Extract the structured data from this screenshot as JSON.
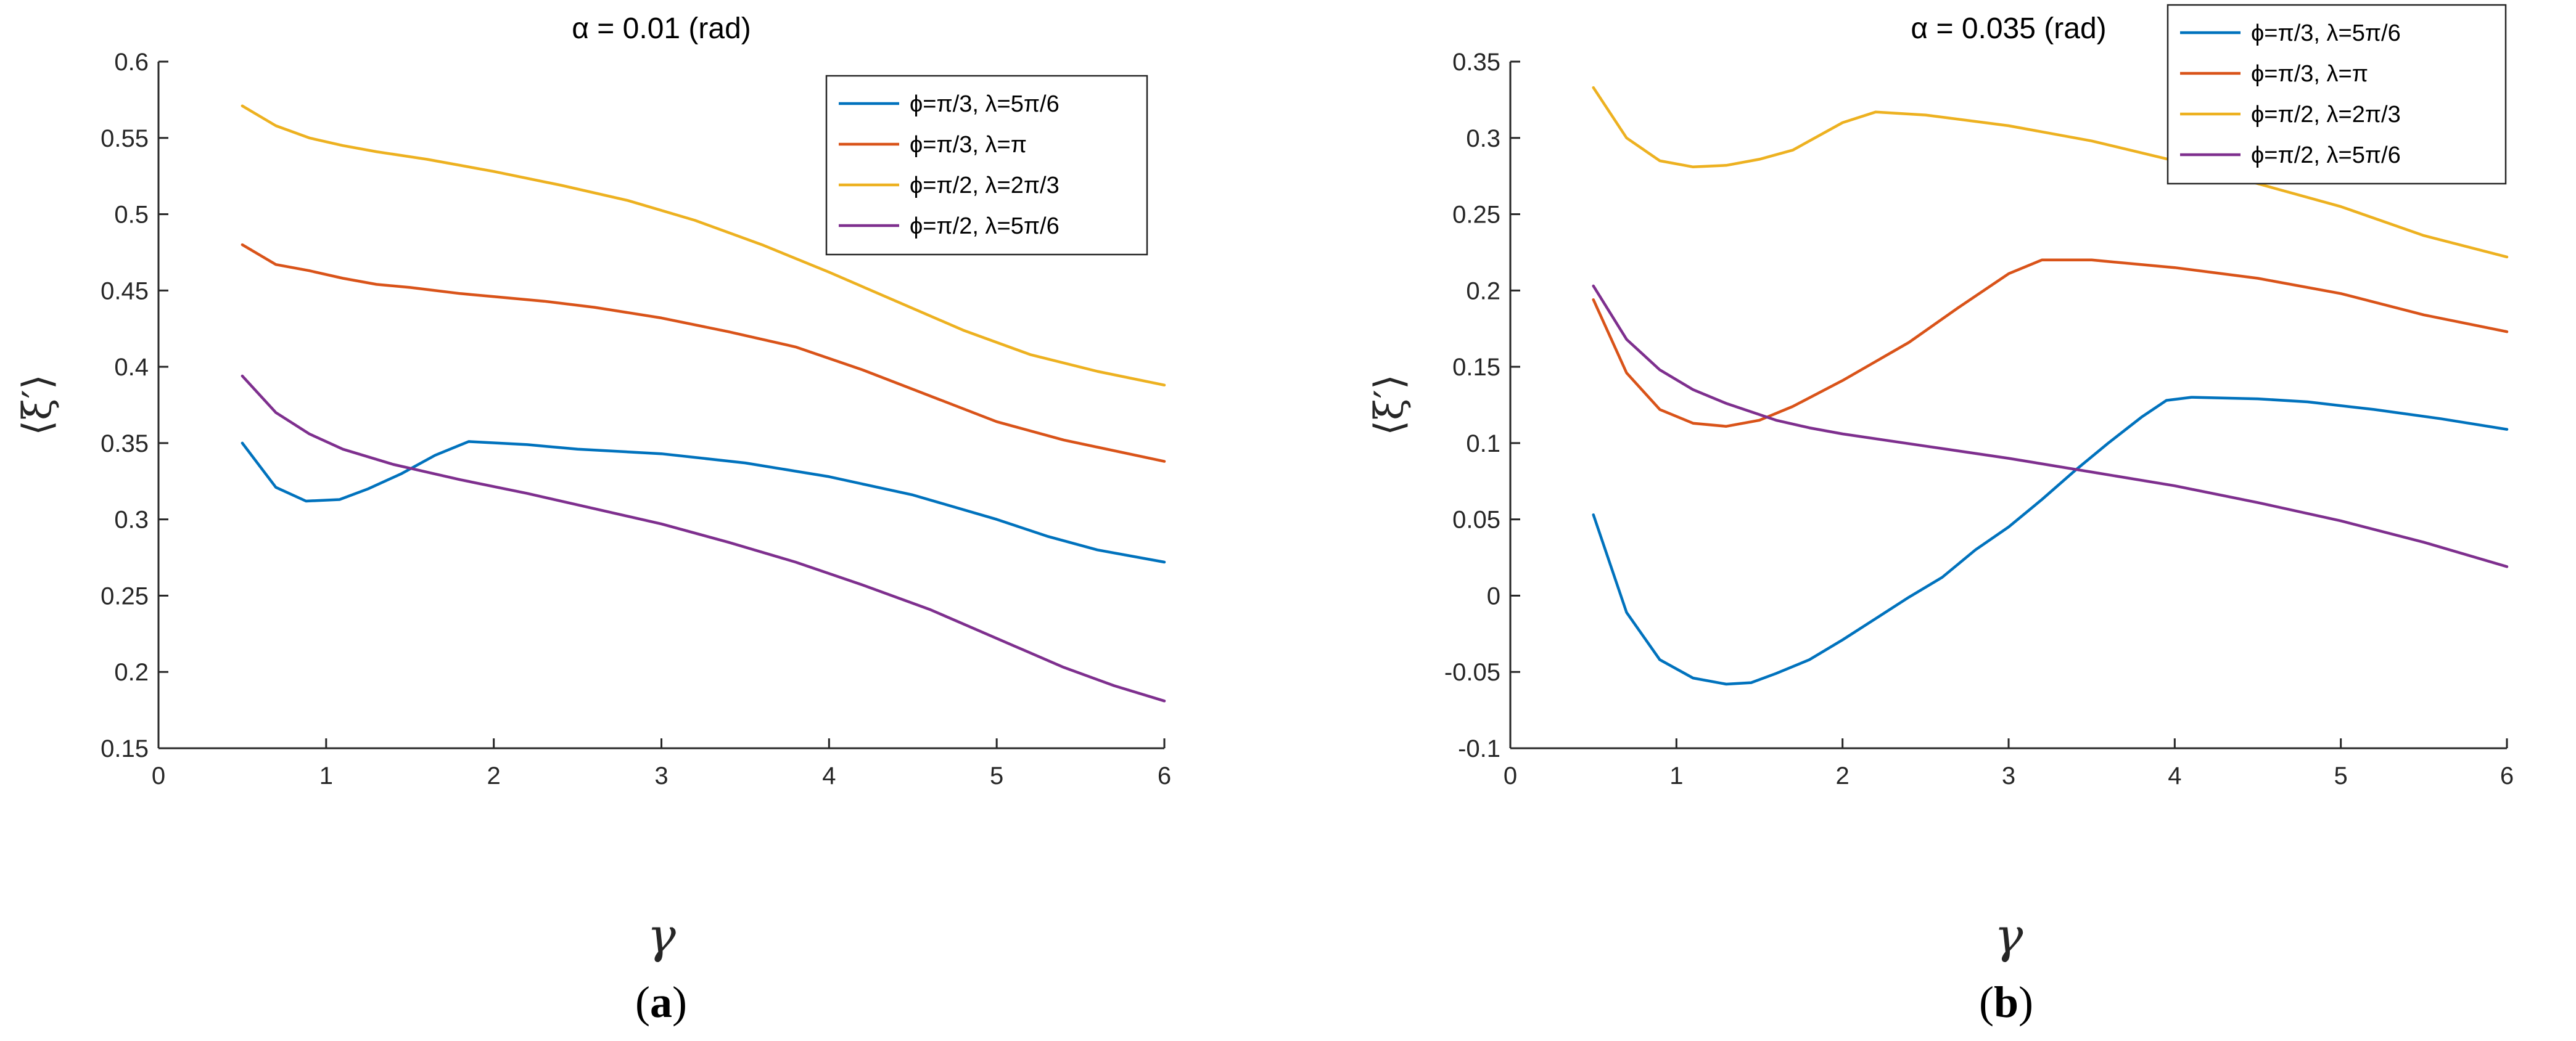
{
  "chart_data": [
    {
      "type": "line",
      "title": "α = 0.01 (rad)",
      "xlabel": "γ",
      "ylabel": "⟨ξ′⟩",
      "xlim": [
        0,
        6
      ],
      "ylim": [
        0.15,
        0.6
      ],
      "xticks": [
        "0",
        "1",
        "2",
        "3",
        "4",
        "5",
        "6"
      ],
      "yticks": [
        "0.15",
        "0.2",
        "0.25",
        "0.3",
        "0.35",
        "0.4",
        "0.45",
        "0.5",
        "0.55",
        "0.6"
      ],
      "legend_position": "top-right",
      "sublabel_open": "(",
      "sublabel_letter": "a",
      "sublabel_close": ")",
      "series": [
        {
          "name": "ϕ=π/3, λ=5π/6",
          "color": "#0072BD",
          "x": [
            0.5,
            0.7,
            0.88,
            1.08,
            1.25,
            1.45,
            1.65,
            1.85,
            2.2,
            2.5,
            3.0,
            3.5,
            4.0,
            4.5,
            5.0,
            5.3,
            5.6,
            6.0
          ],
          "y": [
            0.35,
            0.321,
            0.312,
            0.313,
            0.32,
            0.33,
            0.342,
            0.351,
            0.349,
            0.346,
            0.343,
            0.337,
            0.328,
            0.316,
            0.3,
            0.289,
            0.28,
            0.272
          ]
        },
        {
          "name": "ϕ=π/3, λ=π",
          "color": "#D95319",
          "x": [
            0.5,
            0.7,
            0.9,
            1.1,
            1.3,
            1.5,
            1.8,
            2.0,
            2.3,
            2.6,
            3.0,
            3.4,
            3.8,
            4.2,
            4.6,
            5.0,
            5.4,
            6.0
          ],
          "y": [
            0.48,
            0.467,
            0.463,
            0.458,
            0.454,
            0.452,
            0.448,
            0.446,
            0.443,
            0.439,
            0.432,
            0.423,
            0.413,
            0.398,
            0.381,
            0.364,
            0.352,
            0.338
          ]
        },
        {
          "name": "ϕ=π/2, λ=2π/3",
          "color": "#EDB120",
          "x": [
            0.5,
            0.7,
            0.9,
            1.1,
            1.3,
            1.6,
            2.0,
            2.4,
            2.8,
            3.2,
            3.6,
            4.0,
            4.4,
            4.8,
            5.2,
            5.6,
            6.0
          ],
          "y": [
            0.571,
            0.558,
            0.55,
            0.545,
            0.541,
            0.536,
            0.528,
            0.519,
            0.509,
            0.496,
            0.48,
            0.462,
            0.443,
            0.424,
            0.408,
            0.397,
            0.388
          ]
        },
        {
          "name": "ϕ=π/2, λ=5π/6",
          "color": "#7E2F8E",
          "x": [
            0.5,
            0.7,
            0.9,
            1.1,
            1.4,
            1.8,
            2.2,
            2.6,
            3.0,
            3.4,
            3.8,
            4.2,
            4.6,
            5.0,
            5.4,
            5.7,
            6.0
          ],
          "y": [
            0.394,
            0.37,
            0.356,
            0.346,
            0.336,
            0.326,
            0.317,
            0.307,
            0.297,
            0.285,
            0.272,
            0.257,
            0.241,
            0.222,
            0.203,
            0.191,
            0.181
          ]
        }
      ]
    },
    {
      "type": "line",
      "title": "α = 0.035 (rad)",
      "xlabel": "γ",
      "ylabel": "⟨ξ′⟩",
      "xlim": [
        0,
        6
      ],
      "ylim": [
        -0.1,
        0.35
      ],
      "xticks": [
        "0",
        "1",
        "2",
        "3",
        "4",
        "5",
        "6"
      ],
      "yticks": [
        "-0.1",
        "-0.05",
        "0",
        "0.05",
        "0.1",
        "0.15",
        "0.2",
        "0.25",
        "0.3",
        "0.35"
      ],
      "legend_position": "top-right",
      "sublabel_open": "(",
      "sublabel_letter": "b",
      "sublabel_close": ")",
      "series": [
        {
          "name": "ϕ=π/3, λ=5π/6",
          "color": "#0072BD",
          "x": [
            0.5,
            0.7,
            0.9,
            1.1,
            1.3,
            1.45,
            1.6,
            1.8,
            2.0,
            2.2,
            2.4,
            2.6,
            2.8,
            3.0,
            3.2,
            3.4,
            3.6,
            3.8,
            3.95,
            4.1,
            4.5,
            4.8,
            5.2,
            5.6,
            6.0
          ],
          "y": [
            0.053,
            -0.011,
            -0.042,
            -0.054,
            -0.058,
            -0.057,
            -0.051,
            -0.042,
            -0.029,
            -0.015,
            -0.001,
            0.012,
            0.03,
            0.045,
            0.063,
            0.082,
            0.1,
            0.117,
            0.128,
            0.13,
            0.129,
            0.127,
            0.122,
            0.116,
            0.109
          ]
        },
        {
          "name": "ϕ=π/3, λ=π",
          "color": "#D95319",
          "x": [
            0.5,
            0.7,
            0.9,
            1.1,
            1.3,
            1.5,
            1.7,
            2.0,
            2.4,
            2.7,
            3.0,
            3.2,
            3.5,
            4.0,
            4.5,
            5.0,
            5.5,
            6.0
          ],
          "y": [
            0.194,
            0.146,
            0.122,
            0.113,
            0.111,
            0.115,
            0.124,
            0.141,
            0.166,
            0.189,
            0.211,
            0.22,
            0.22,
            0.215,
            0.208,
            0.198,
            0.184,
            0.173
          ]
        },
        {
          "name": "ϕ=π/2, λ=2π/3",
          "color": "#EDB120",
          "x": [
            0.5,
            0.7,
            0.9,
            1.1,
            1.3,
            1.5,
            1.7,
            2.0,
            2.2,
            2.5,
            3.0,
            3.5,
            4.0,
            4.5,
            5.0,
            5.5,
            6.0
          ],
          "y": [
            0.333,
            0.3,
            0.285,
            0.281,
            0.282,
            0.286,
            0.292,
            0.31,
            0.317,
            0.315,
            0.308,
            0.298,
            0.285,
            0.27,
            0.255,
            0.236,
            0.222
          ]
        },
        {
          "name": "ϕ=π/2, λ=5π/6",
          "color": "#7E2F8E",
          "x": [
            0.5,
            0.7,
            0.9,
            1.1,
            1.3,
            1.6,
            1.8,
            2.0,
            2.5,
            3.0,
            3.5,
            4.0,
            4.5,
            5.0,
            5.5,
            6.0
          ],
          "y": [
            0.203,
            0.168,
            0.148,
            0.135,
            0.126,
            0.115,
            0.11,
            0.106,
            0.098,
            0.09,
            0.081,
            0.072,
            0.061,
            0.049,
            0.035,
            0.019
          ]
        }
      ]
    }
  ]
}
